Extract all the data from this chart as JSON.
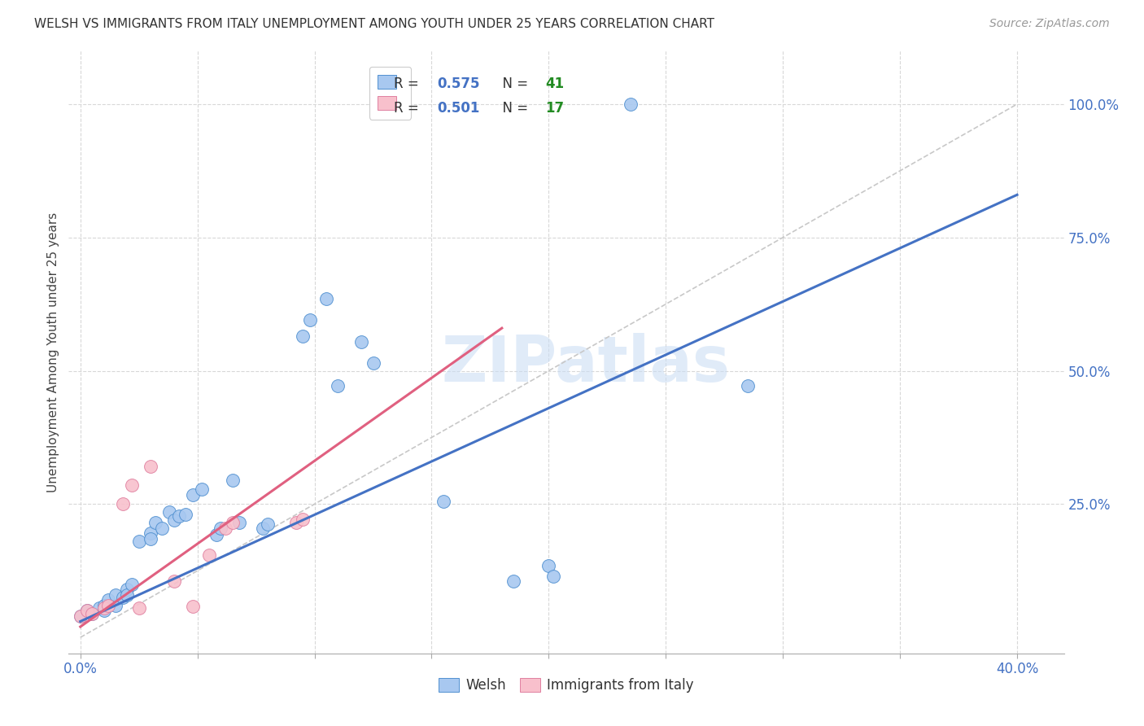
{
  "title": "WELSH VS IMMIGRANTS FROM ITALY UNEMPLOYMENT AMONG YOUTH UNDER 25 YEARS CORRELATION CHART",
  "source": "Source: ZipAtlas.com",
  "ylabel": "Unemployment Among Youth under 25 years",
  "y_ticks": [
    "100.0%",
    "75.0%",
    "50.0%",
    "25.0%"
  ],
  "y_tick_vals": [
    1.0,
    0.75,
    0.5,
    0.25
  ],
  "x_tick_vals": [
    0.0,
    0.05,
    0.1,
    0.15,
    0.2,
    0.25,
    0.3,
    0.35,
    0.4
  ],
  "x_lim": [
    -0.005,
    0.42
  ],
  "y_lim": [
    -0.03,
    1.1
  ],
  "legend_label_blue": "Welsh",
  "legend_label_pink": "Immigrants from Italy",
  "blue_fill": "#A8C8F0",
  "pink_fill": "#F8C0CC",
  "blue_edge": "#5090D0",
  "pink_edge": "#E080A0",
  "blue_line_color": "#4472C4",
  "pink_line_color": "#E06080",
  "diagonal_color": "#C8C8C8",
  "R_value_color": "#4472C4",
  "N_value_color": "#228B22",
  "welsh_points": [
    [
      0.0,
      0.04
    ],
    [
      0.003,
      0.05
    ],
    [
      0.005,
      0.045
    ],
    [
      0.008,
      0.055
    ],
    [
      0.01,
      0.05
    ],
    [
      0.01,
      0.06
    ],
    [
      0.012,
      0.07
    ],
    [
      0.015,
      0.06
    ],
    [
      0.015,
      0.08
    ],
    [
      0.018,
      0.075
    ],
    [
      0.02,
      0.09
    ],
    [
      0.02,
      0.08
    ],
    [
      0.022,
      0.1
    ],
    [
      0.025,
      0.18
    ],
    [
      0.03,
      0.195
    ],
    [
      0.03,
      0.185
    ],
    [
      0.032,
      0.215
    ],
    [
      0.035,
      0.205
    ],
    [
      0.038,
      0.235
    ],
    [
      0.04,
      0.22
    ],
    [
      0.042,
      0.228
    ],
    [
      0.045,
      0.23
    ],
    [
      0.048,
      0.268
    ],
    [
      0.052,
      0.278
    ],
    [
      0.058,
      0.192
    ],
    [
      0.06,
      0.205
    ],
    [
      0.065,
      0.295
    ],
    [
      0.068,
      0.215
    ],
    [
      0.078,
      0.205
    ],
    [
      0.08,
      0.212
    ],
    [
      0.095,
      0.565
    ],
    [
      0.098,
      0.595
    ],
    [
      0.105,
      0.635
    ],
    [
      0.11,
      0.472
    ],
    [
      0.12,
      0.555
    ],
    [
      0.125,
      0.515
    ],
    [
      0.155,
      0.255
    ],
    [
      0.185,
      0.105
    ],
    [
      0.2,
      0.135
    ],
    [
      0.202,
      0.115
    ],
    [
      0.235,
      1.0
    ],
    [
      0.285,
      0.472
    ]
  ],
  "italy_points": [
    [
      0.0,
      0.04
    ],
    [
      0.003,
      0.05
    ],
    [
      0.005,
      0.045
    ],
    [
      0.01,
      0.055
    ],
    [
      0.012,
      0.06
    ],
    [
      0.018,
      0.25
    ],
    [
      0.022,
      0.285
    ],
    [
      0.025,
      0.055
    ],
    [
      0.03,
      0.32
    ],
    [
      0.04,
      0.105
    ],
    [
      0.048,
      0.058
    ],
    [
      0.055,
      0.155
    ],
    [
      0.062,
      0.205
    ],
    [
      0.065,
      0.215
    ],
    [
      0.092,
      0.215
    ],
    [
      0.095,
      0.222
    ],
    [
      0.13,
      1.035
    ]
  ],
  "watermark": "ZIPatlas",
  "blue_line": {
    "x0": 0.0,
    "x1": 0.4,
    "y0": 0.03,
    "y1": 0.83
  },
  "pink_line": {
    "x0": 0.0,
    "x1": 0.18,
    "y0": 0.02,
    "y1": 0.58
  },
  "diag_line": {
    "x0": 0.0,
    "x1": 0.4,
    "y0": 0.0,
    "y1": 1.0
  }
}
